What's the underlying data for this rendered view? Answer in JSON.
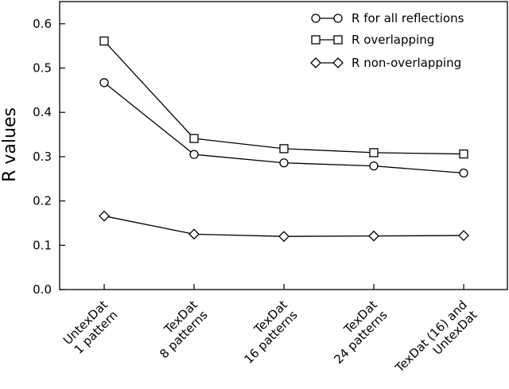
{
  "chart_data": {
    "type": "line",
    "ylabel": "R values",
    "xlabel": "",
    "title": "",
    "ylim": [
      0.0,
      0.65
    ],
    "yticks": [
      0.0,
      0.1,
      0.2,
      0.3,
      0.4,
      0.5,
      0.6
    ],
    "ytick_labels": [
      "0.0",
      "0.1",
      "0.2",
      "0.3",
      "0.4",
      "0.5",
      "0.6"
    ],
    "grid": false,
    "legend_position": "top-right",
    "categories": [
      {
        "line1": "UntexDat",
        "line2": "1 pattern"
      },
      {
        "line1": "TexDat",
        "line2": "8 patterns"
      },
      {
        "line1": "TexDat",
        "line2": "16 patterns"
      },
      {
        "line1": "TexDat",
        "line2": "24 patterns"
      },
      {
        "line1": "TexDat (16) and",
        "line2": "UntexDat"
      }
    ],
    "series": [
      {
        "name": "R for all reflections",
        "marker": "circle",
        "values": [
          0.467,
          0.305,
          0.286,
          0.279,
          0.263
        ]
      },
      {
        "name": "R overlapping",
        "marker": "square",
        "values": [
          0.561,
          0.341,
          0.318,
          0.309,
          0.306
        ]
      },
      {
        "name": "R non-overlapping",
        "marker": "diamond",
        "values": [
          0.166,
          0.125,
          0.12,
          0.121,
          0.122
        ]
      }
    ]
  }
}
